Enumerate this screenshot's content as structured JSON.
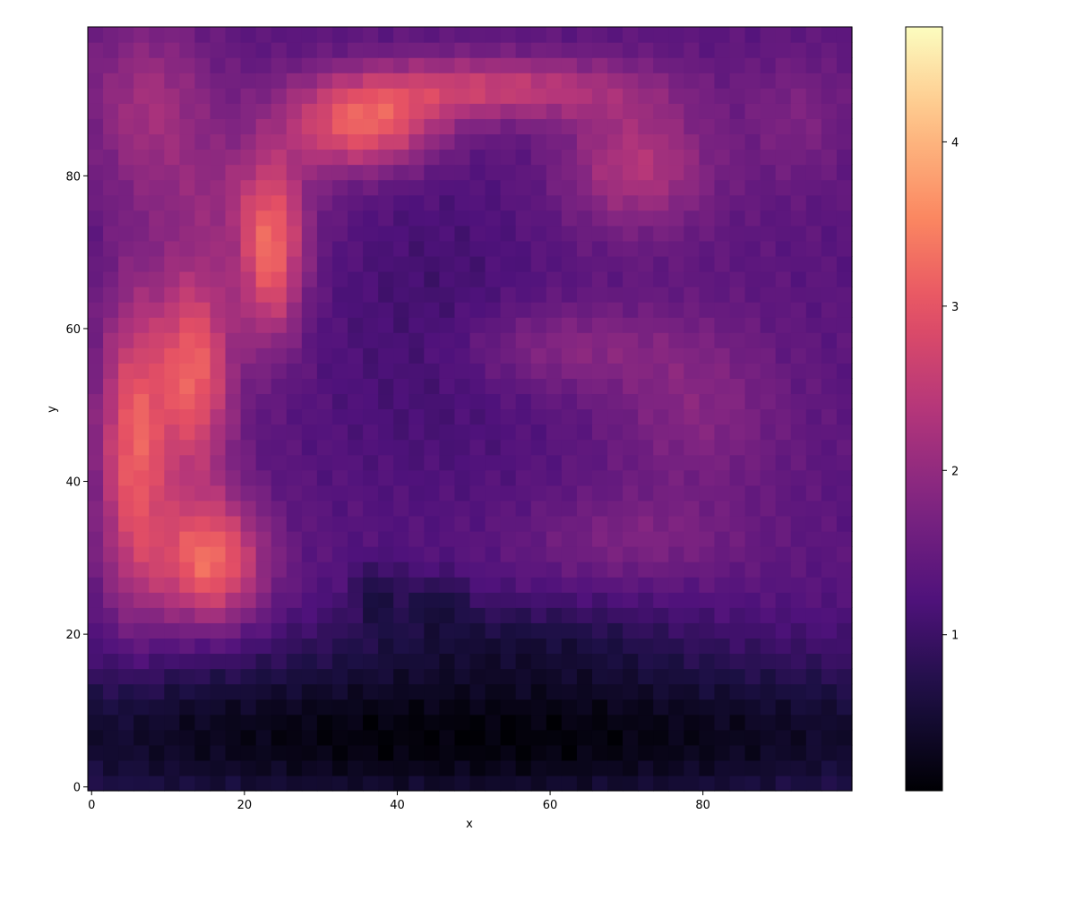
{
  "chart_data": {
    "type": "heatmap",
    "title": "",
    "xlabel": "x",
    "ylabel": "y",
    "xlim": [
      0,
      100
    ],
    "ylim": [
      0,
      100
    ],
    "x_ticks": [
      0,
      20,
      40,
      60,
      80
    ],
    "y_ticks": [
      0,
      20,
      40,
      60,
      80
    ],
    "colormap": "magma",
    "colorbar": {
      "range": [
        0.05,
        4.7
      ],
      "ticks": [
        1,
        2,
        3,
        4
      ]
    },
    "grid": false,
    "field_description": "",
    "features": [
      {
        "type": "blob",
        "x": 50,
        "y": 7,
        "sx": 60,
        "sy": 8,
        "value": -1.25
      },
      {
        "type": "blob",
        "x": 55,
        "y": 20,
        "sx": 16,
        "sy": 4,
        "value": -0.45
      },
      {
        "type": "blob",
        "x": 38,
        "y": 26,
        "sx": 2.5,
        "sy": 3,
        "value": -0.55
      },
      {
        "type": "blob",
        "x": 46,
        "y": 25,
        "sx": 2.5,
        "sy": 2.5,
        "value": -0.5
      },
      {
        "type": "blob",
        "x": 16,
        "y": 30,
        "sx": 5,
        "sy": 6,
        "value": 1.9
      },
      {
        "type": "blob",
        "x": 6,
        "y": 45,
        "sx": 3.2,
        "sy": 14,
        "value": 1.75
      },
      {
        "type": "blob",
        "x": 14,
        "y": 55,
        "sx": 3.5,
        "sy": 10,
        "value": 1.8
      },
      {
        "type": "blob",
        "x": 24,
        "y": 70,
        "sx": 3,
        "sy": 8,
        "value": 1.75
      },
      {
        "type": "blob",
        "x": 36,
        "y": 87,
        "sx": 7,
        "sy": 4,
        "value": 1.7
      },
      {
        "type": "blob",
        "x": 52,
        "y": 92,
        "sx": 14,
        "sy": 3,
        "value": 1.25
      },
      {
        "type": "blob",
        "x": 72,
        "y": 82,
        "sx": 7,
        "sy": 6,
        "value": 1.0
      },
      {
        "type": "blob",
        "x": 8,
        "y": 90,
        "sx": 6,
        "sy": 8,
        "value": 0.8
      },
      {
        "type": "blob",
        "x": 20,
        "y": 78,
        "sx": 8,
        "sy": 6,
        "value": 0.5
      },
      {
        "type": "blob",
        "x": 93,
        "y": 88,
        "sx": 5,
        "sy": 6,
        "value": 0.4
      },
      {
        "type": "blob",
        "x": 62,
        "y": 58,
        "sx": 10,
        "sy": 4,
        "value": 0.55
      },
      {
        "type": "blob",
        "x": 80,
        "y": 50,
        "sx": 8,
        "sy": 8,
        "value": 0.5
      },
      {
        "type": "blob",
        "x": 72,
        "y": 33,
        "sx": 10,
        "sy": 4,
        "value": 0.4
      },
      {
        "type": "blob",
        "x": 45,
        "y": 60,
        "sx": 10,
        "sy": 15,
        "value": -0.3
      }
    ]
  }
}
